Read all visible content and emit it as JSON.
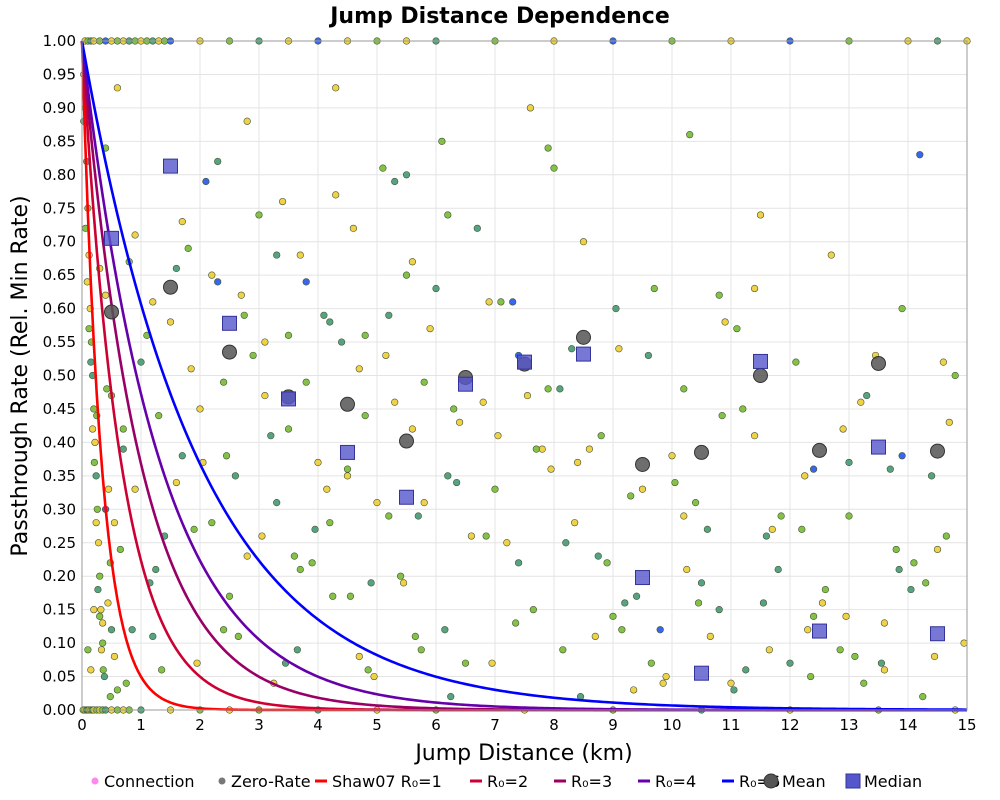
{
  "chart_data": {
    "type": "scatter",
    "title": "Jump Distance Dependence",
    "xlabel": "Jump Distance (km)",
    "ylabel": "Passthrough Rate (Rel. Min Rate)",
    "xlim": [
      0,
      15
    ],
    "ylim": [
      0,
      1
    ],
    "x_ticks": [
      "0",
      "1",
      "2",
      "3",
      "4",
      "5",
      "6",
      "7",
      "8",
      "9",
      "10",
      "11",
      "12",
      "13",
      "14",
      "15"
    ],
    "y_ticks": [
      "0.00",
      "0.05",
      "0.10",
      "0.15",
      "0.20",
      "0.25",
      "0.30",
      "0.35",
      "0.40",
      "0.45",
      "0.50",
      "0.55",
      "0.60",
      "0.65",
      "0.70",
      "0.75",
      "0.80",
      "0.85",
      "0.90",
      "0.95",
      "1.00"
    ],
    "grid": true,
    "legend_position": "bottom",
    "legend": [
      {
        "label": "Connection",
        "marker": "dot",
        "color": "#ff88ee"
      },
      {
        "label": "Zero-Rate",
        "marker": "dot",
        "color": "#777777"
      },
      {
        "label": "Shaw07 R₀=1",
        "marker": "line",
        "color": "#ff0000"
      },
      {
        "label": "R₀=2",
        "marker": "line",
        "color": "#cc0033"
      },
      {
        "label": "R₀=3",
        "marker": "line",
        "color": "#990066"
      },
      {
        "label": "R₀=4",
        "marker": "line",
        "color": "#6600aa"
      },
      {
        "label": "R₀=6",
        "marker": "line",
        "color": "#0000ff"
      },
      {
        "label": "Mean",
        "marker": "circle",
        "color": "#555555"
      },
      {
        "label": "Median",
        "marker": "square",
        "color": "#5555cc"
      }
    ],
    "curves": [
      {
        "name": "Shaw07 R₀=1",
        "R0": 1,
        "color": "#ff0000"
      },
      {
        "name": "R₀=2",
        "R0": 2,
        "color": "#cc0033"
      },
      {
        "name": "R₀=3",
        "R0": 3,
        "color": "#990066"
      },
      {
        "name": "R₀=4",
        "R0": 4,
        "color": "#6600aa"
      },
      {
        "name": "R₀=6",
        "R0": 6,
        "color": "#0000ff"
      }
    ],
    "mean": {
      "x": [
        0.5,
        1.5,
        2.5,
        3.5,
        4.5,
        5.5,
        6.5,
        7.5,
        8.5,
        9.5,
        10.5,
        11.5,
        12.5,
        13.5,
        14.5
      ],
      "y": [
        0.595,
        0.632,
        0.535,
        0.468,
        0.457,
        0.402,
        0.497,
        0.517,
        0.557,
        0.367,
        0.385,
        0.5,
        0.388,
        0.518,
        0.387
      ]
    },
    "median": {
      "x": [
        0.5,
        1.5,
        2.5,
        3.5,
        4.5,
        5.5,
        6.5,
        7.5,
        8.5,
        9.5,
        10.5,
        11.5,
        12.5,
        13.5,
        14.5
      ],
      "y": [
        0.705,
        0.813,
        0.578,
        0.465,
        0.385,
        0.318,
        0.487,
        0.52,
        0.532,
        0.198,
        0.055,
        0.521,
        0.118,
        0.393,
        0.114
      ]
    },
    "points": {
      "colors": {
        "yellow": "#eecc33",
        "green": "#77bb33",
        "teal": "#449977",
        "blue": "#2255ee"
      },
      "x": [
        0.05,
        0.1,
        0.15,
        0.2,
        0.3,
        0.4,
        0.5,
        0.6,
        0.7,
        0.8,
        0.9,
        1.0,
        1.1,
        1.2,
        1.3,
        1.4,
        1.5,
        2.0,
        2.5,
        3.0,
        3.5,
        4.0,
        4.5,
        5.0,
        5.5,
        6.0,
        7.0,
        8.0,
        9.0,
        10.0,
        11.0,
        12.0,
        13.0,
        14.0,
        14.5,
        15.0,
        0.02,
        0.05,
        0.08,
        0.1,
        0.12,
        0.15,
        0.18,
        0.2,
        0.25,
        0.3,
        0.35,
        0.4,
        0.5,
        0.6,
        0.7,
        0.8,
        1.0,
        1.5,
        2.0,
        2.5,
        3.0,
        4.0,
        5.0,
        6.0,
        7.5,
        9.0,
        10.5,
        12.0,
        13.5,
        14.8,
        0.03,
        0.06,
        0.08,
        0.1,
        0.12,
        0.14,
        0.16,
        0.18,
        0.2,
        0.22,
        0.24,
        0.26,
        0.28,
        0.3,
        0.32,
        0.35,
        0.38,
        0.4,
        0.42,
        0.45,
        0.48,
        0.5,
        0.55,
        0.6,
        0.03,
        0.06,
        0.09,
        0.12,
        0.15,
        0.18,
        0.21,
        0.24,
        0.27,
        0.3,
        0.33,
        0.36,
        0.4,
        0.44,
        0.48,
        0.4,
        0.6,
        0.8,
        1.0,
        1.2,
        1.3,
        1.5,
        1.7,
        1.9,
        2.1,
        2.2,
        2.4,
        2.6,
        2.8,
        3.0,
        3.1,
        3.3,
        3.5,
        3.7,
        3.9,
        4.1,
        4.3,
        4.5,
        4.7,
        4.9,
        5.1,
        5.3,
        5.5,
        5.7,
        5.9,
        6.1,
        6.4,
        6.7,
        7.0,
        7.3,
        7.6,
        7.9,
        8.2,
        8.5,
        8.8,
        9.1,
        9.4,
        9.7,
        10.0,
        10.3,
        10.6,
        10.9,
        11.2,
        11.5,
        11.8,
        12.1,
        12.4,
        12.7,
        13.0,
        13.3,
        13.6,
        13.9,
        14.2,
        14.5,
        14.8,
        0.3,
        0.5,
        0.7,
        0.9,
        1.1,
        1.4,
        1.6,
        1.8,
        2.0,
        2.3,
        2.5,
        2.7,
        2.9,
        3.2,
        3.4,
        3.6,
        3.8,
        4.0,
        4.2,
        4.4,
        4.6,
        4.8,
        5.0,
        5.2,
        5.4,
        5.6,
        5.8,
        6.2,
        6.6,
        7.1,
        7.8,
        8.3,
        8.9,
        9.5,
        10.2,
        10.8,
        11.4,
        12.2,
        12.9,
        13.7,
        14.3,
        2.3,
        3.5,
        4.5,
        5.5,
        6.2,
        6.8,
        7.4,
        8.0,
        8.6,
        9.2,
        9.8,
        10.4,
        11.0,
        11.6,
        12.3,
        13.1,
        13.9,
        14.6,
        0.2,
        0.7,
        1.2,
        1.7,
        2.2,
        2.8,
        3.3,
        3.8,
        4.3,
        4.8,
        5.3,
        5.8,
        6.3,
        6.9,
        7.4,
        7.9,
        8.4,
        9.0,
        9.6,
        10.2,
        10.8,
        11.4,
        12.0,
        12.6,
        13.2,
        13.8,
        14.4,
        0.1,
        0.9,
        1.6,
        2.4,
        3.1,
        3.7,
        4.2,
        4.7,
        5.2,
        5.6,
        6.0,
        6.5,
        7.2,
        7.7,
        8.1,
        8.7,
        9.3,
        9.9,
        10.5,
        11.1,
        11.7,
        12.4,
        13.0,
        13.6,
        14.1,
        14.7,
        0.15,
        0.65,
        1.15,
        1.85,
        2.65,
        3.25,
        3.95,
        4.55,
        5.15,
        5.75,
        6.35,
        7.05,
        7.65,
        8.35,
        9.05,
        9.65,
        10.25,
        10.85,
        11.55,
        12.25,
        12.85,
        13.45,
        14.05,
        14.65,
        0.25,
        0.55,
        0.85,
        1.35,
        2.05,
        2.75,
        3.45,
        4.15,
        4.85,
        5.45,
        6.15,
        6.85,
        7.55,
        8.15,
        8.75,
        9.35,
        10.05,
        10.65,
        11.25,
        11.85,
        12.55,
        13.25,
        13.85,
        14.45,
        0.35,
        0.75,
        1.25,
        1.95,
        2.45,
        3.05,
        3.65,
        4.25,
        4.95,
        5.65,
        6.25,
        6.95,
        7.35,
        7.95,
        8.45,
        9.15,
        9.85,
        10.45,
        11.05,
        11.65,
        12.35,
        12.95,
        13.55,
        14.25,
        14.95
      ],
      "y": [
        1,
        1,
        1,
        1,
        1,
        1,
        1,
        1,
        1,
        1,
        1,
        1,
        1,
        1,
        1,
        1,
        1,
        1,
        1,
        1,
        1,
        1,
        1,
        1,
        1,
        1,
        1,
        1,
        1,
        1,
        1,
        1,
        1,
        1,
        1,
        1,
        0,
        0,
        0,
        0,
        0,
        0,
        0,
        0,
        0,
        0,
        0,
        0,
        0,
        0,
        0,
        0,
        0,
        0,
        0,
        0,
        0,
        0,
        0,
        0,
        0,
        0,
        0,
        0,
        0,
        0,
        0.95,
        0.9,
        0.82,
        0.75,
        0.68,
        0.6,
        0.55,
        0.5,
        0.45,
        0.4,
        0.35,
        0.3,
        0.25,
        0.2,
        0.15,
        0.1,
        0.05,
        0.62,
        0.48,
        0.33,
        0.22,
        0.12,
        0.08,
        0.03,
        0.88,
        0.72,
        0.64,
        0.57,
        0.52,
        0.42,
        0.37,
        0.28,
        0.18,
        0.14,
        0.09,
        0.06,
        0.3,
        0.16,
        0.02,
        0.84,
        0.93,
        0.67,
        0.52,
        0.61,
        0.44,
        0.58,
        0.38,
        0.27,
        0.79,
        0.65,
        0.49,
        0.35,
        0.88,
        0.74,
        0.55,
        0.31,
        0.42,
        0.68,
        0.22,
        0.59,
        0.77,
        0.36,
        0.51,
        0.19,
        0.81,
        0.46,
        0.65,
        0.29,
        0.57,
        0.85,
        0.43,
        0.72,
        0.33,
        0.61,
        0.9,
        0.48,
        0.25,
        0.7,
        0.41,
        0.54,
        0.17,
        0.63,
        0.38,
        0.86,
        0.27,
        0.58,
        0.45,
        0.74,
        0.21,
        0.52,
        0.36,
        0.68,
        0.29,
        0.47,
        0.13,
        0.6,
        0.83,
        0.24,
        0.5,
        0.66,
        0.47,
        0.39,
        0.71,
        0.56,
        0.26,
        0.34,
        0.69,
        0.45,
        0.82,
        0.17,
        0.62,
        0.53,
        0.41,
        0.76,
        0.23,
        0.64,
        0.37,
        0.28,
        0.55,
        0.72,
        0.44,
        0.31,
        0.59,
        0.2,
        0.67,
        0.49,
        0.35,
        0.26,
        0.61,
        0.39,
        0.54,
        0.22,
        0.33,
        0.48,
        0.15,
        0.63,
        0.27,
        0.42,
        0.36,
        0.19,
        0.64,
        0.56,
        0.35,
        0.8,
        0.74,
        0.46,
        0.53,
        0.81,
        0.39,
        0.16,
        0.12,
        0.31,
        0.04,
        0.26,
        0.12,
        0.08,
        0.38,
        0.52,
        0.15,
        0.42,
        0.11,
        0.73,
        0.28,
        0.23,
        0.68,
        0.49,
        0.93,
        0.56,
        0.79,
        0.31,
        0.45,
        0.61,
        0.22,
        0.84,
        0.37,
        0.14,
        0.53,
        0.29,
        0.62,
        0.41,
        0.07,
        0.18,
        0.46,
        0.24,
        0.35,
        0.09,
        0.33,
        0.66,
        0.12,
        0.47,
        0.21,
        0.58,
        0.08,
        0.29,
        0.42,
        0.63,
        0.07,
        0.25,
        0.39,
        0.48,
        0.11,
        0.32,
        0.05,
        0.19,
        0.57,
        0.27,
        0.14,
        0.37,
        0.06,
        0.22,
        0.43,
        0.06,
        0.24,
        0.19,
        0.51,
        0.11,
        0.04,
        0.27,
        0.17,
        0.53,
        0.09,
        0.34,
        0.41,
        0.15,
        0.28,
        0.6,
        0.07,
        0.21,
        0.44,
        0.16,
        0.35,
        0.09,
        0.53,
        0.18,
        0.26,
        0.44,
        0.28,
        0.12,
        0.06,
        0.37,
        0.59,
        0.07,
        0.33,
        0.06,
        0.19,
        0.12,
        0.26,
        0.47,
        0.09,
        0.23,
        0.03,
        0.34,
        0.11,
        0.06,
        0.29,
        0.16,
        0.04,
        0.21,
        0.08,
        0.13,
        0.04,
        0.21,
        0.07,
        0.38,
        0.26,
        0.09,
        0.17,
        0.05,
        0.11,
        0.02,
        0.07,
        0.13,
        0.36,
        0.02,
        0.12,
        0.04,
        0.16,
        0.03,
        0.09,
        0.05,
        0.14,
        0.07,
        0.02,
        0.1
      ],
      "c": [
        "y",
        "g",
        "t",
        "y",
        "g",
        "b",
        "y",
        "g",
        "y",
        "t",
        "g",
        "y",
        "g",
        "t",
        "y",
        "g",
        "b",
        "y",
        "g",
        "t",
        "y",
        "b",
        "y",
        "g",
        "y",
        "t",
        "g",
        "y",
        "b",
        "g",
        "y",
        "b",
        "g",
        "y",
        "t",
        "y",
        "g",
        "y",
        "t",
        "g",
        "y",
        "g",
        "t",
        "y",
        "g",
        "y",
        "g",
        "t",
        "y",
        "g",
        "y",
        "g",
        "t",
        "y",
        "g",
        "y",
        "g",
        "t",
        "y",
        "g",
        "y",
        "g",
        "t",
        "y",
        "g",
        "y",
        "y",
        "g",
        "t",
        "g",
        "y",
        "y",
        "g",
        "t",
        "g",
        "y",
        "t",
        "g",
        "y",
        "g",
        "y",
        "g",
        "t",
        "y",
        "g",
        "y",
        "g",
        "t",
        "y",
        "g",
        "t",
        "g",
        "y",
        "g",
        "t",
        "y",
        "g",
        "y",
        "t",
        "g",
        "y",
        "g",
        "b",
        "y",
        "g",
        "g",
        "y",
        "g",
        "t",
        "y",
        "g",
        "y",
        "t",
        "g",
        "b",
        "y",
        "g",
        "t",
        "y",
        "g",
        "y",
        "t",
        "g",
        "y",
        "g",
        "t",
        "y",
        "g",
        "y",
        "t",
        "g",
        "y",
        "g",
        "t",
        "y",
        "g",
        "y",
        "t",
        "g",
        "b",
        "y",
        "g",
        "t",
        "y",
        "g",
        "y",
        "t",
        "g",
        "y",
        "g",
        "t",
        "y",
        "g",
        "y",
        "t",
        "g",
        "b",
        "y",
        "g",
        "t",
        "y",
        "g",
        "b",
        "y",
        "g",
        "y",
        "g",
        "t",
        "y",
        "g",
        "t",
        "y",
        "g",
        "y",
        "t",
        "g",
        "y",
        "g",
        "t",
        "y",
        "g",
        "b",
        "y",
        "g",
        "t",
        "y",
        "g",
        "y",
        "t",
        "g",
        "y",
        "g",
        "t",
        "y",
        "g",
        "y",
        "t",
        "g",
        "y",
        "g",
        "t",
        "y",
        "g",
        "y",
        "t",
        "g",
        "b",
        "g",
        "y",
        "t",
        "g",
        "y",
        "b",
        "g",
        "y",
        "t",
        "b",
        "g",
        "y",
        "t",
        "y",
        "g",
        "b",
        "y",
        "y",
        "g",
        "t",
        "y",
        "g",
        "y",
        "t",
        "g",
        "y",
        "g",
        "t",
        "y",
        "g",
        "y",
        "t",
        "g",
        "y",
        "g",
        "t",
        "y",
        "g",
        "y",
        "t",
        "g",
        "y",
        "g",
        "t",
        "g",
        "y",
        "t",
        "g",
        "y",
        "g",
        "t",
        "y",
        "g",
        "y",
        "t",
        "g",
        "y",
        "g",
        "t",
        "y",
        "g",
        "y",
        "t",
        "g",
        "y",
        "g",
        "t",
        "y",
        "g",
        "y",
        "y",
        "g",
        "t",
        "y",
        "g",
        "y",
        "t",
        "g",
        "y",
        "g",
        "t",
        "y",
        "g",
        "y",
        "t",
        "g",
        "y",
        "g",
        "t",
        "y",
        "g",
        "y",
        "t",
        "g",
        "g",
        "y",
        "t",
        "g",
        "y",
        "g",
        "t",
        "y",
        "g",
        "y",
        "t",
        "g",
        "y",
        "g",
        "t",
        "y",
        "g",
        "y",
        "t",
        "g",
        "y",
        "g",
        "t",
        "y",
        "y",
        "g",
        "t",
        "y",
        "g",
        "y",
        "t",
        "g",
        "y",
        "g",
        "t",
        "y",
        "g",
        "y",
        "t",
        "g",
        "y",
        "g",
        "t",
        "y",
        "g",
        "y",
        "t",
        "g",
        "y"
      ]
    }
  }
}
